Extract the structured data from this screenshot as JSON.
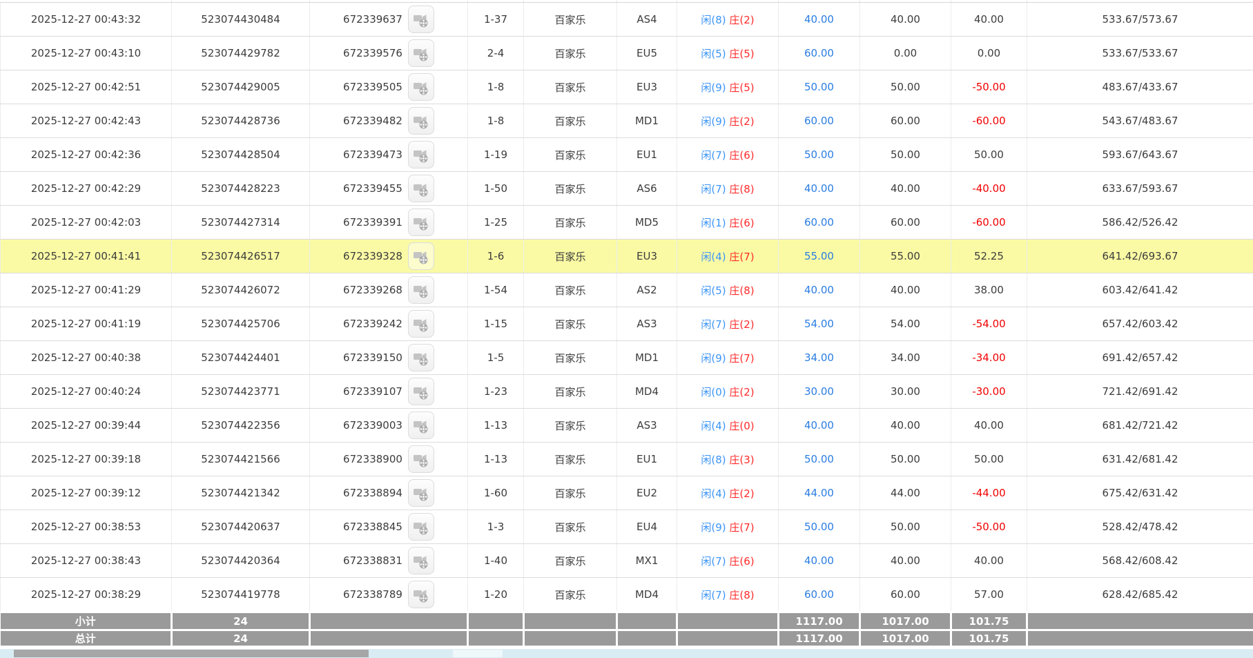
{
  "table": {
    "game_type_label": "百家乐",
    "rows": [
      {
        "time": "2025-12-27 00:43:32",
        "bet_id": "523074430484",
        "round_id": "672339637",
        "seat": "1-37",
        "game": "百家乐",
        "table": "AS4",
        "player": "闲(8)",
        "banker": "庄(2)",
        "bet": "40.00",
        "valid": "40.00",
        "winloss": "40.00",
        "balance": "533.67/573.67",
        "highlight": false
      },
      {
        "time": "2025-12-27 00:43:10",
        "bet_id": "523074429782",
        "round_id": "672339576",
        "seat": "2-4",
        "game": "百家乐",
        "table": "EU5",
        "player": "闲(5)",
        "banker": "庄(5)",
        "bet": "60.00",
        "valid": "0.00",
        "winloss": "0.00",
        "balance": "533.67/533.67",
        "highlight": false
      },
      {
        "time": "2025-12-27 00:42:51",
        "bet_id": "523074429005",
        "round_id": "672339505",
        "seat": "1-8",
        "game": "百家乐",
        "table": "EU3",
        "player": "闲(9)",
        "banker": "庄(5)",
        "bet": "50.00",
        "valid": "50.00",
        "winloss": "-50.00",
        "balance": "483.67/433.67",
        "highlight": false
      },
      {
        "time": "2025-12-27 00:42:43",
        "bet_id": "523074428736",
        "round_id": "672339482",
        "seat": "1-8",
        "game": "百家乐",
        "table": "MD1",
        "player": "闲(9)",
        "banker": "庄(2)",
        "bet": "60.00",
        "valid": "60.00",
        "winloss": "-60.00",
        "balance": "543.67/483.67",
        "highlight": false
      },
      {
        "time": "2025-12-27 00:42:36",
        "bet_id": "523074428504",
        "round_id": "672339473",
        "seat": "1-19",
        "game": "百家乐",
        "table": "EU1",
        "player": "闲(7)",
        "banker": "庄(6)",
        "bet": "50.00",
        "valid": "50.00",
        "winloss": "50.00",
        "balance": "593.67/643.67",
        "highlight": false
      },
      {
        "time": "2025-12-27 00:42:29",
        "bet_id": "523074428223",
        "round_id": "672339455",
        "seat": "1-50",
        "game": "百家乐",
        "table": "AS6",
        "player": "闲(7)",
        "banker": "庄(8)",
        "bet": "40.00",
        "valid": "40.00",
        "winloss": "-40.00",
        "balance": "633.67/593.67",
        "highlight": false
      },
      {
        "time": "2025-12-27 00:42:03",
        "bet_id": "523074427314",
        "round_id": "672339391",
        "seat": "1-25",
        "game": "百家乐",
        "table": "MD5",
        "player": "闲(1)",
        "banker": "庄(6)",
        "bet": "60.00",
        "valid": "60.00",
        "winloss": "-60.00",
        "balance": "586.42/526.42",
        "highlight": false
      },
      {
        "time": "2025-12-27 00:41:41",
        "bet_id": "523074426517",
        "round_id": "672339328",
        "seat": "1-6",
        "game": "百家乐",
        "table": "EU3",
        "player": "闲(4)",
        "banker": "庄(7)",
        "bet": "55.00",
        "valid": "55.00",
        "winloss": "52.25",
        "balance": "641.42/693.67",
        "highlight": true
      },
      {
        "time": "2025-12-27 00:41:29",
        "bet_id": "523074426072",
        "round_id": "672339268",
        "seat": "1-54",
        "game": "百家乐",
        "table": "AS2",
        "player": "闲(5)",
        "banker": "庄(8)",
        "bet": "40.00",
        "valid": "40.00",
        "winloss": "38.00",
        "balance": "603.42/641.42",
        "highlight": false
      },
      {
        "time": "2025-12-27 00:41:19",
        "bet_id": "523074425706",
        "round_id": "672339242",
        "seat": "1-15",
        "game": "百家乐",
        "table": "AS3",
        "player": "闲(7)",
        "banker": "庄(2)",
        "bet": "54.00",
        "valid": "54.00",
        "winloss": "-54.00",
        "balance": "657.42/603.42",
        "highlight": false
      },
      {
        "time": "2025-12-27 00:40:38",
        "bet_id": "523074424401",
        "round_id": "672339150",
        "seat": "1-5",
        "game": "百家乐",
        "table": "MD1",
        "player": "闲(9)",
        "banker": "庄(7)",
        "bet": "34.00",
        "valid": "34.00",
        "winloss": "-34.00",
        "balance": "691.42/657.42",
        "highlight": false
      },
      {
        "time": "2025-12-27 00:40:24",
        "bet_id": "523074423771",
        "round_id": "672339107",
        "seat": "1-23",
        "game": "百家乐",
        "table": "MD4",
        "player": "闲(0)",
        "banker": "庄(2)",
        "bet": "30.00",
        "valid": "30.00",
        "winloss": "-30.00",
        "balance": "721.42/691.42",
        "highlight": false
      },
      {
        "time": "2025-12-27 00:39:44",
        "bet_id": "523074422356",
        "round_id": "672339003",
        "seat": "1-13",
        "game": "百家乐",
        "table": "AS3",
        "player": "闲(4)",
        "banker": "庄(0)",
        "bet": "40.00",
        "valid": "40.00",
        "winloss": "40.00",
        "balance": "681.42/721.42",
        "highlight": false
      },
      {
        "time": "2025-12-27 00:39:18",
        "bet_id": "523074421566",
        "round_id": "672338900",
        "seat": "1-13",
        "game": "百家乐",
        "table": "EU1",
        "player": "闲(8)",
        "banker": "庄(3)",
        "bet": "50.00",
        "valid": "50.00",
        "winloss": "50.00",
        "balance": "631.42/681.42",
        "highlight": false
      },
      {
        "time": "2025-12-27 00:39:12",
        "bet_id": "523074421342",
        "round_id": "672338894",
        "seat": "1-60",
        "game": "百家乐",
        "table": "EU2",
        "player": "闲(4)",
        "banker": "庄(2)",
        "bet": "44.00",
        "valid": "44.00",
        "winloss": "-44.00",
        "balance": "675.42/631.42",
        "highlight": false
      },
      {
        "time": "2025-12-27 00:38:53",
        "bet_id": "523074420637",
        "round_id": "672338845",
        "seat": "1-3",
        "game": "百家乐",
        "table": "EU4",
        "player": "闲(9)",
        "banker": "庄(7)",
        "bet": "50.00",
        "valid": "50.00",
        "winloss": "-50.00",
        "balance": "528.42/478.42",
        "highlight": false
      },
      {
        "time": "2025-12-27 00:38:43",
        "bet_id": "523074420364",
        "round_id": "672338831",
        "seat": "1-40",
        "game": "百家乐",
        "table": "MX1",
        "player": "闲(7)",
        "banker": "庄(6)",
        "bet": "40.00",
        "valid": "40.00",
        "winloss": "40.00",
        "balance": "568.42/608.42",
        "highlight": false
      },
      {
        "time": "2025-12-27 00:38:29",
        "bet_id": "523074419778",
        "round_id": "672338789",
        "seat": "1-20",
        "game": "百家乐",
        "table": "MD4",
        "player": "闲(7)",
        "banker": "庄(8)",
        "bet": "60.00",
        "valid": "60.00",
        "winloss": "57.00",
        "balance": "628.42/685.42",
        "highlight": false
      }
    ],
    "summary": [
      {
        "label": "小计",
        "count": "24",
        "bet": "1117.00",
        "valid": "1017.00",
        "winloss": "101.75"
      },
      {
        "label": "总计",
        "count": "24",
        "bet": "1117.00",
        "valid": "1017.00",
        "winloss": "101.75"
      }
    ]
  },
  "icons": {
    "video_replay": "video-icon"
  },
  "colors": {
    "highlight_row": "#fafaa5",
    "summary_bg": "#9a9a9a",
    "bet_link_blue": "#2a7de1",
    "player_blue": "#3b94f7",
    "banker_red": "#ff2a2a",
    "loss_red": "#f20000",
    "scrollbar_track": "#d9ecf4",
    "scrollbar_thumb": "#a6a6a6"
  }
}
